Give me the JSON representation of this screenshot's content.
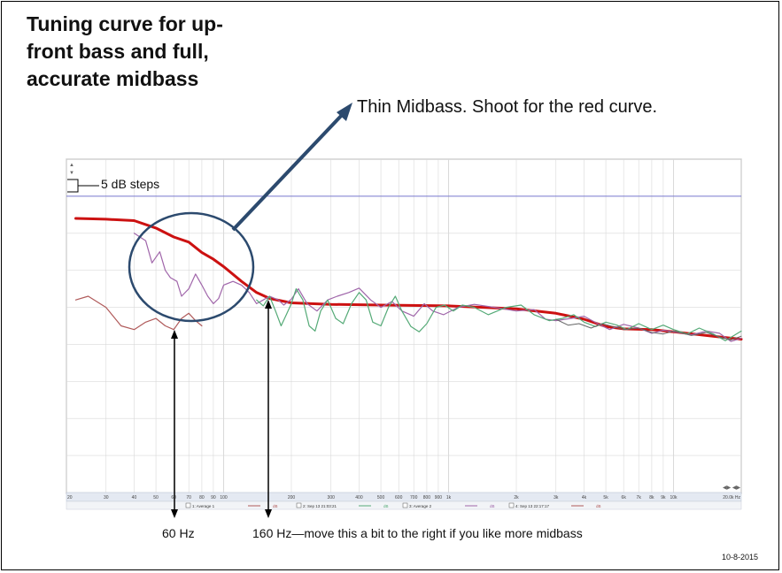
{
  "title_lines": [
    "Tuning curve for up-",
    "front bass and full,",
    "accurate midbass"
  ],
  "callout": "Thin Midbass. Shoot for the red curve.",
  "steps_label": "5 dB steps",
  "label_60": "60 Hz",
  "label_160": "160 Hz—move this a bit to the right if you like more midbass",
  "date": "10-8-2015",
  "colors": {
    "target": "#cc1111",
    "green": "#55aa77",
    "purple": "#a066aa",
    "brown": "#b05a5a",
    "gray": "#666666",
    "annotation": "#2c4a6e",
    "grid": "#d9d9d9",
    "hline": "#7a7ad0"
  },
  "legend": [
    {
      "check": "1: Average 1",
      "unit": "dB"
    },
    {
      "check": "2: Sep 13 21:03:21",
      "unit": "dB"
    },
    {
      "check": "3: Average 2",
      "unit": "dB"
    },
    {
      "check": "4: Sep 13 22:17:17",
      "unit": "dB"
    }
  ],
  "chart_data": {
    "type": "line",
    "title": "",
    "xlabel": "",
    "ylabel": "",
    "x_scale": "log",
    "xlim": [
      20,
      20000
    ],
    "ylim": [
      -40,
      5
    ],
    "grid": true,
    "y_step_db": 5,
    "x_tick_labels": [
      {
        "f": 20,
        "label": "20"
      },
      {
        "f": 30,
        "label": "30"
      },
      {
        "f": 40,
        "label": "40"
      },
      {
        "f": 50,
        "label": "50"
      },
      {
        "f": 60,
        "label": "60"
      },
      {
        "f": 70,
        "label": "70"
      },
      {
        "f": 80,
        "label": "80"
      },
      {
        "f": 90,
        "label": "90"
      },
      {
        "f": 100,
        "label": "100"
      },
      {
        "f": 200,
        "label": "200"
      },
      {
        "f": 300,
        "label": "300"
      },
      {
        "f": 400,
        "label": "400"
      },
      {
        "f": 500,
        "label": "500"
      },
      {
        "f": 600,
        "label": "600"
      },
      {
        "f": 700,
        "label": "700"
      },
      {
        "f": 800,
        "label": "800"
      },
      {
        "f": 900,
        "label": "900"
      },
      {
        "f": 1000,
        "label": "1k"
      },
      {
        "f": 2000,
        "label": "2k"
      },
      {
        "f": 3000,
        "label": "3k"
      },
      {
        "f": 4000,
        "label": "4k"
      },
      {
        "f": 5000,
        "label": "5k"
      },
      {
        "f": 6000,
        "label": "6k"
      },
      {
        "f": 7000,
        "label": "7k"
      },
      {
        "f": 8000,
        "label": "8k"
      },
      {
        "f": 9000,
        "label": "9k"
      },
      {
        "f": 10000,
        "label": "10k"
      },
      {
        "f": 20000,
        "label": "20.0k Hz"
      }
    ],
    "reference_line_db": 0,
    "series": [
      {
        "key": "target",
        "color": "#cc1111",
        "width": 3,
        "points": [
          [
            22,
            -3
          ],
          [
            30,
            -3.1
          ],
          [
            40,
            -3.3
          ],
          [
            50,
            -4.3
          ],
          [
            60,
            -5.5
          ],
          [
            70,
            -6.2
          ],
          [
            80,
            -7.6
          ],
          [
            90,
            -8.5
          ],
          [
            100,
            -9.5
          ],
          [
            120,
            -11.5
          ],
          [
            140,
            -13
          ],
          [
            160,
            -13.8
          ],
          [
            200,
            -14.4
          ],
          [
            300,
            -14.6
          ],
          [
            500,
            -14.7
          ],
          [
            1000,
            -14.8
          ],
          [
            2000,
            -15.2
          ],
          [
            3000,
            -15.8
          ],
          [
            4000,
            -16.6
          ],
          [
            5000,
            -17.6
          ],
          [
            6000,
            -17.9
          ],
          [
            8000,
            -18
          ],
          [
            10000,
            -18.3
          ],
          [
            15000,
            -18.9
          ],
          [
            20000,
            -19.3
          ]
        ]
      },
      {
        "key": "brown",
        "color": "#b05a5a",
        "width": 1.2,
        "points": [
          [
            22,
            -14
          ],
          [
            25,
            -13.5
          ],
          [
            30,
            -15
          ],
          [
            35,
            -17.5
          ],
          [
            40,
            -18
          ],
          [
            45,
            -17
          ],
          [
            50,
            -16.5
          ],
          [
            55,
            -17.5
          ],
          [
            60,
            -18
          ],
          [
            65,
            -16.5
          ],
          [
            70,
            -15.8
          ],
          [
            75,
            -16.8
          ],
          [
            80,
            -17.5
          ]
        ]
      },
      {
        "key": "purple",
        "color": "#a066aa",
        "width": 1.2,
        "points": [
          [
            40,
            -5
          ],
          [
            45,
            -6
          ],
          [
            48,
            -9
          ],
          [
            52,
            -7.5
          ],
          [
            55,
            -10
          ],
          [
            58,
            -11
          ],
          [
            62,
            -11.5
          ],
          [
            65,
            -13.5
          ],
          [
            70,
            -12.5
          ],
          [
            75,
            -10.5
          ],
          [
            80,
            -12
          ],
          [
            85,
            -13.5
          ],
          [
            90,
            -14.5
          ],
          [
            95,
            -13.8
          ],
          [
            100,
            -12
          ],
          [
            110,
            -11.5
          ],
          [
            120,
            -12
          ],
          [
            130,
            -13
          ],
          [
            140,
            -14.5
          ],
          [
            150,
            -14
          ],
          [
            160,
            -13.5
          ],
          [
            175,
            -14
          ],
          [
            185,
            -14.7
          ],
          [
            200,
            -13.9
          ],
          [
            215,
            -12.5
          ],
          [
            235,
            -14.5
          ],
          [
            260,
            -15.5
          ],
          [
            290,
            -14
          ],
          [
            320,
            -13.5
          ],
          [
            360,
            -13
          ],
          [
            400,
            -12.4
          ],
          [
            450,
            -14
          ],
          [
            500,
            -15
          ],
          [
            560,
            -14.2
          ],
          [
            620,
            -15.5
          ],
          [
            700,
            -16.2
          ],
          [
            780,
            -14.5
          ],
          [
            850,
            -15.5
          ],
          [
            950,
            -16
          ],
          [
            1100,
            -15
          ],
          [
            1300,
            -14.6
          ],
          [
            1600,
            -15
          ],
          [
            2000,
            -15.5
          ],
          [
            2400,
            -15.3
          ],
          [
            2700,
            -16.6
          ],
          [
            3000,
            -16.8
          ],
          [
            3500,
            -16.5
          ],
          [
            4000,
            -16.2
          ],
          [
            4600,
            -17.2
          ],
          [
            5200,
            -18
          ],
          [
            6000,
            -17.3
          ],
          [
            7000,
            -17.8
          ],
          [
            8000,
            -18.5
          ],
          [
            9000,
            -18.1
          ],
          [
            10000,
            -18.3
          ],
          [
            12000,
            -18.7
          ],
          [
            14000,
            -18.2
          ],
          [
            16000,
            -18.5
          ],
          [
            18000,
            -19.6
          ],
          [
            20000,
            -19.2
          ]
        ]
      },
      {
        "key": "green",
        "color": "#55aa77",
        "width": 1.2,
        "points": [
          [
            140,
            -14
          ],
          [
            150,
            -14.8
          ],
          [
            160,
            -13.5
          ],
          [
            170,
            -15.5
          ],
          [
            180,
            -17.5
          ],
          [
            190,
            -16
          ],
          [
            200,
            -14.5
          ],
          [
            210,
            -12.5
          ],
          [
            225,
            -14
          ],
          [
            240,
            -17.5
          ],
          [
            255,
            -18.2
          ],
          [
            270,
            -15.5
          ],
          [
            290,
            -14
          ],
          [
            315,
            -16.5
          ],
          [
            340,
            -17.2
          ],
          [
            370,
            -14.5
          ],
          [
            400,
            -13
          ],
          [
            430,
            -14
          ],
          [
            460,
            -17
          ],
          [
            500,
            -17.5
          ],
          [
            540,
            -15
          ],
          [
            580,
            -13.5
          ],
          [
            620,
            -15.5
          ],
          [
            680,
            -17.6
          ],
          [
            740,
            -18.3
          ],
          [
            800,
            -17.2
          ],
          [
            880,
            -15
          ],
          [
            960,
            -14.7
          ],
          [
            1050,
            -15.5
          ],
          [
            1150,
            -14.7
          ],
          [
            1300,
            -15
          ],
          [
            1500,
            -16
          ],
          [
            1800,
            -15
          ],
          [
            2100,
            -14.7
          ],
          [
            2400,
            -16
          ],
          [
            2800,
            -16.8
          ],
          [
            3200,
            -16.5
          ],
          [
            3600,
            -16
          ],
          [
            4000,
            -17
          ],
          [
            4500,
            -17.6
          ],
          [
            5000,
            -17
          ],
          [
            5600,
            -17.4
          ],
          [
            6200,
            -18
          ],
          [
            7000,
            -17.2
          ],
          [
            8000,
            -18
          ],
          [
            9000,
            -17.4
          ],
          [
            10000,
            -18
          ],
          [
            11500,
            -18.6
          ],
          [
            13000,
            -17.8
          ],
          [
            15000,
            -18.6
          ],
          [
            17000,
            -19.5
          ],
          [
            20000,
            -18.2
          ]
        ]
      },
      {
        "key": "gray",
        "color": "#666666",
        "width": 1,
        "points": [
          [
            3000,
            -16.6
          ],
          [
            3400,
            -17.4
          ],
          [
            3800,
            -17.2
          ],
          [
            4300,
            -17.8
          ],
          [
            4800,
            -17.2
          ],
          [
            5400,
            -17.6
          ],
          [
            6000,
            -18
          ],
          [
            7000,
            -17.8
          ],
          [
            8000,
            -18.4
          ],
          [
            9000,
            -18.6
          ],
          [
            10000,
            -18.2
          ],
          [
            12000,
            -18.8
          ],
          [
            14000,
            -18.4
          ],
          [
            16000,
            -19
          ],
          [
            18000,
            -19.4
          ],
          [
            20000,
            -18.9
          ]
        ]
      }
    ]
  }
}
